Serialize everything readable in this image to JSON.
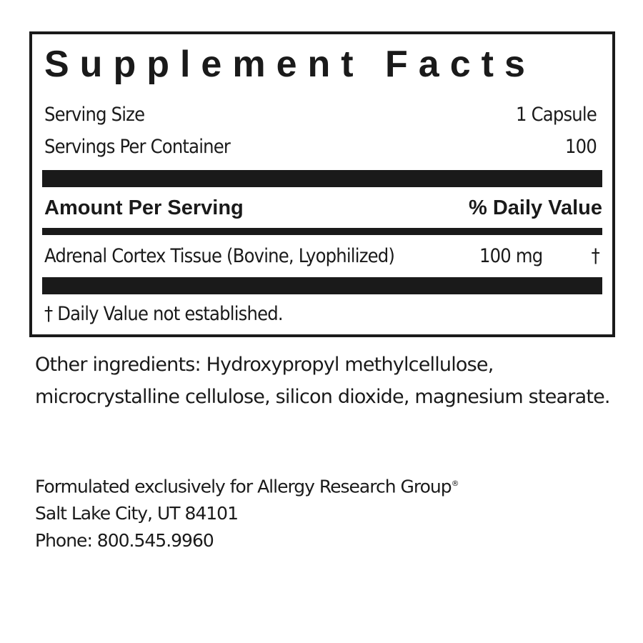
{
  "panel": {
    "title": "Supplement Facts",
    "serving_size_label": "Serving Size",
    "serving_size_value": "1 Capsule",
    "servings_per_container_label": "Servings Per Container",
    "servings_per_container_value": "100",
    "amount_header": "Amount Per Serving",
    "daily_value_header": "% Daily Value",
    "ingredients": [
      {
        "name": "Adrenal Cortex Tissue (Bovine, Lyophilized)",
        "amount": "100 mg",
        "dv": "†"
      }
    ],
    "footnote": "† Daily Value not established."
  },
  "other_ingredients": "Other ingredients: Hydroxypropyl methylcellulose, microcrystalline cellulose, silicon dioxide, magnesium stearate.",
  "manufacturer": {
    "line1": "Formulated exclusively for Allergy Research Group",
    "registered_mark": "®",
    "line2": "Salt Lake City, UT 84101",
    "line3": "Phone: 800.545.9960"
  }
}
